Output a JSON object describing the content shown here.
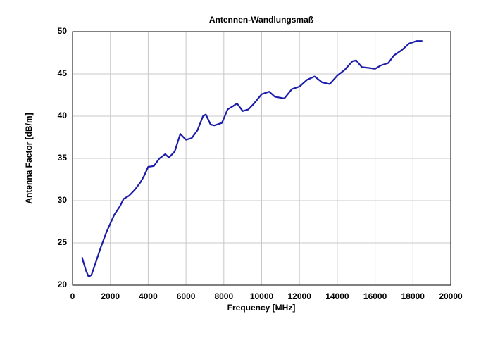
{
  "chart_data": {
    "type": "line",
    "title": "Antennen-Wandlungsmaß",
    "xlabel": "Frequency [MHz]",
    "ylabel": "Antenna Factor [dB/m]",
    "x": [
      500,
      700,
      850,
      1000,
      1200,
      1500,
      1800,
      2000,
      2200,
      2500,
      2700,
      3000,
      3300,
      3600,
      3800,
      4000,
      4300,
      4600,
      4900,
      5100,
      5400,
      5700,
      6000,
      6300,
      6600,
      6900,
      7050,
      7300,
      7500,
      7900,
      8200,
      8500,
      8700,
      9000,
      9300,
      9600,
      10000,
      10400,
      10700,
      11200,
      11600,
      12000,
      12400,
      12800,
      13200,
      13600,
      14000,
      14400,
      14800,
      15000,
      15300,
      15700,
      16000,
      16300,
      16700,
      17000,
      17400,
      17800,
      18200,
      18500
    ],
    "series": [
      {
        "name": "Antenna Factor",
        "color": "#1c1caa",
        "values": [
          23.3,
          21.8,
          21.0,
          21.2,
          22.5,
          24.5,
          26.3,
          27.3,
          28.3,
          29.3,
          30.2,
          30.6,
          31.3,
          32.2,
          33.0,
          34.0,
          34.1,
          35.0,
          35.5,
          35.1,
          35.8,
          37.9,
          37.2,
          37.4,
          38.3,
          40.0,
          40.2,
          39.0,
          38.9,
          39.2,
          40.8,
          41.2,
          41.5,
          40.6,
          40.8,
          41.5,
          42.6,
          42.9,
          42.3,
          42.1,
          43.2,
          43.5,
          44.3,
          44.7,
          44.0,
          43.8,
          44.8,
          45.5,
          46.5,
          46.6,
          45.8,
          45.7,
          45.6,
          46.0,
          46.3,
          47.2,
          47.8,
          48.6,
          48.9,
          48.9
        ]
      }
    ],
    "xlim": [
      0,
      20000
    ],
    "xticks": [
      0,
      2000,
      4000,
      6000,
      8000,
      10000,
      12000,
      14000,
      16000,
      18000,
      20000
    ],
    "ylim": [
      20,
      50
    ],
    "yticks": [
      20,
      25,
      30,
      35,
      40,
      45,
      50
    ],
    "grid": true
  }
}
